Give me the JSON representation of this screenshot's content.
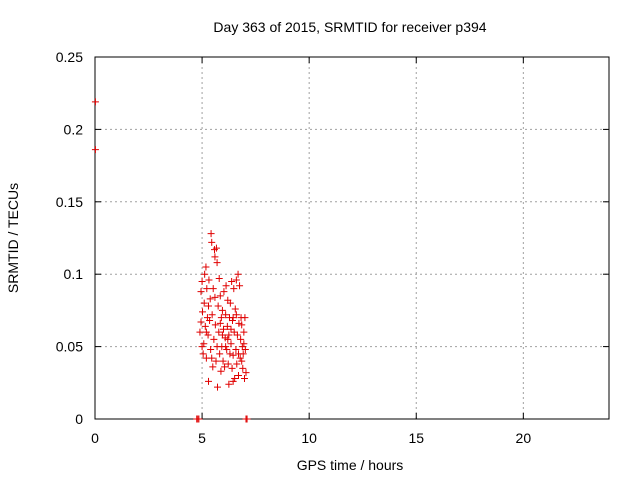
{
  "chart_data": {
    "type": "scatter",
    "title": "Day 363 of 2015, SRMTID for receiver p394",
    "xlabel": "GPS time / hours",
    "ylabel": "SRMTID / TECUs",
    "xlim": [
      0,
      24
    ],
    "ylim": [
      0,
      0.25
    ],
    "x_ticks": [
      0,
      5,
      10,
      15,
      20
    ],
    "x_tick_labels": [
      "0",
      "5",
      "10",
      "15",
      "20"
    ],
    "y_ticks": [
      0,
      0.05,
      0.1,
      0.15,
      0.2,
      0.25
    ],
    "y_tick_labels": [
      "0",
      "0.05",
      "0.1",
      "0.15",
      "0.2",
      "0.25"
    ],
    "grid": true,
    "marker": "plus",
    "color": "#e00000",
    "series": [
      {
        "points": [
          [
            0.02,
            0.219
          ],
          [
            0.02,
            0.186
          ],
          [
            4.75,
            0.0
          ],
          [
            4.8,
            0.0
          ],
          [
            4.85,
            0.0
          ],
          [
            7.05,
            0.0
          ],
          [
            7.1,
            0.0
          ],
          [
            4.95,
            0.067
          ],
          [
            5.0,
            0.095
          ],
          [
            4.9,
            0.06
          ],
          [
            5.05,
            0.045
          ],
          [
            5.1,
            0.08
          ],
          [
            4.95,
            0.088
          ],
          [
            5.02,
            0.074
          ],
          [
            5.08,
            0.052
          ],
          [
            5.12,
            0.1
          ],
          [
            5.15,
            0.064
          ],
          [
            5.18,
            0.105
          ],
          [
            5.2,
            0.042
          ],
          [
            5.22,
            0.09
          ],
          [
            5.25,
            0.07
          ],
          [
            5.28,
            0.058
          ],
          [
            5.3,
            0.026
          ],
          [
            5.32,
            0.096
          ],
          [
            5.35,
            0.068
          ],
          [
            5.38,
            0.083
          ],
          [
            5.4,
            0.048
          ],
          [
            5.42,
            0.128
          ],
          [
            5.45,
            0.122
          ],
          [
            5.47,
            0.072
          ],
          [
            5.5,
            0.036
          ],
          [
            5.52,
            0.09
          ],
          [
            5.55,
            0.055
          ],
          [
            5.58,
            0.117
          ],
          [
            5.6,
            0.112
          ],
          [
            5.62,
            0.065
          ],
          [
            5.65,
            0.04
          ],
          [
            5.67,
            0.118
          ],
          [
            5.7,
            0.108
          ],
          [
            5.72,
            0.022
          ],
          [
            5.75,
            0.078
          ],
          [
            5.78,
            0.06
          ],
          [
            5.8,
            0.097
          ],
          [
            5.82,
            0.045
          ],
          [
            5.85,
            0.085
          ],
          [
            5.88,
            0.033
          ],
          [
            5.9,
            0.07
          ],
          [
            5.92,
            0.05
          ],
          [
            5.95,
            0.075
          ],
          [
            5.98,
            0.04
          ],
          [
            6.0,
            0.062
          ],
          [
            6.02,
            0.088
          ],
          [
            6.05,
            0.036
          ],
          [
            6.08,
            0.056
          ],
          [
            6.1,
            0.072
          ],
          [
            6.12,
            0.092
          ],
          [
            6.15,
            0.048
          ],
          [
            6.18,
            0.064
          ],
          [
            6.2,
            0.082
          ],
          [
            6.22,
            0.038
          ],
          [
            6.25,
            0.058
          ],
          [
            6.28,
            0.07
          ],
          [
            6.3,
            0.045
          ],
          [
            6.32,
            0.08
          ],
          [
            6.35,
            0.052
          ],
          [
            6.38,
            0.095
          ],
          [
            6.4,
            0.035
          ],
          [
            6.42,
            0.068
          ],
          [
            6.45,
            0.044
          ],
          [
            6.48,
            0.09
          ],
          [
            6.5,
            0.06
          ],
          [
            6.52,
            0.028
          ],
          [
            6.55,
            0.076
          ],
          [
            6.58,
            0.048
          ],
          [
            6.6,
            0.096
          ],
          [
            6.62,
            0.038
          ],
          [
            6.65,
            0.058
          ],
          [
            6.68,
            0.1
          ],
          [
            6.7,
            0.03
          ],
          [
            6.72,
            0.066
          ],
          [
            6.75,
            0.092
          ],
          [
            6.78,
            0.042
          ],
          [
            6.8,
            0.055
          ],
          [
            6.82,
            0.07
          ],
          [
            6.85,
            0.04
          ],
          [
            6.88,
            0.05
          ],
          [
            6.9,
            0.035
          ],
          [
            6.92,
            0.045
          ],
          [
            6.95,
            0.06
          ],
          [
            6.98,
            0.028
          ],
          [
            7.0,
            0.07
          ],
          [
            7.02,
            0.048
          ],
          [
            7.05,
            0.032
          ],
          [
            6.25,
            0.024
          ],
          [
            6.45,
            0.026
          ],
          [
            5.3,
            0.078
          ],
          [
            5.6,
            0.084
          ],
          [
            5.85,
            0.066
          ],
          [
            6.1,
            0.05
          ],
          [
            6.35,
            0.062
          ],
          [
            6.6,
            0.072
          ],
          [
            6.85,
            0.065
          ],
          [
            5.0,
            0.05
          ],
          [
            5.2,
            0.06
          ],
          [
            5.45,
            0.042
          ],
          [
            5.7,
            0.05
          ],
          [
            5.95,
            0.058
          ],
          [
            6.2,
            0.055
          ],
          [
            6.45,
            0.07
          ],
          [
            6.7,
            0.045
          ],
          [
            6.95,
            0.052
          ]
        ]
      }
    ]
  }
}
